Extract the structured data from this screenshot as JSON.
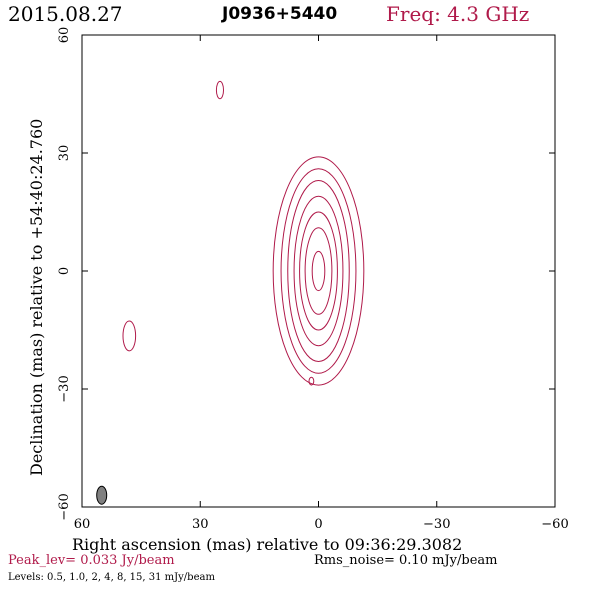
{
  "header": {
    "date": "2015.08.27",
    "source": "J0936+5440",
    "freq": "Freq: 4.3 GHz"
  },
  "footer": {
    "peak": "Peak_lev=  0.033 Jy/beam",
    "rms": "Rms_noise= 0.10 mJy/beam",
    "levels": "Levels: 0.5, 1.0,   2,   4,   8,  15,  31 mJy/beam"
  },
  "colors": {
    "contour": "#b01a4a",
    "beam_fill": "#808080",
    "frame": "#000000"
  },
  "chart_data": {
    "type": "contour",
    "xlabel": "Right ascension (mas) relative to 09:36:29.3082",
    "ylabel": "Declination (mas) relative to +54:40:24.760",
    "xlim": [
      60,
      -60
    ],
    "ylim": [
      -60,
      60
    ],
    "xticks": [
      60,
      30,
      0,
      -30,
      -60
    ],
    "yticks": [
      60,
      30,
      0,
      -30,
      -60
    ],
    "xtick_labels": [
      "60",
      "30",
      "0",
      "−30",
      "−60"
    ],
    "ytick_labels": [
      "60",
      "30",
      "0",
      "−30",
      "−60"
    ],
    "contour_levels_mJy_per_beam": [
      0.5,
      1.0,
      2,
      4,
      8,
      15,
      31
    ],
    "main_source": {
      "x": 0,
      "y": 0,
      "n_contours": 7
    },
    "features": [
      {
        "x": 25,
        "y": 46
      },
      {
        "x": 48,
        "y": -16.5
      },
      {
        "x": 1.8,
        "y": -28
      }
    ],
    "beam": {
      "x": 55,
      "y": -57
    },
    "grid": false
  }
}
